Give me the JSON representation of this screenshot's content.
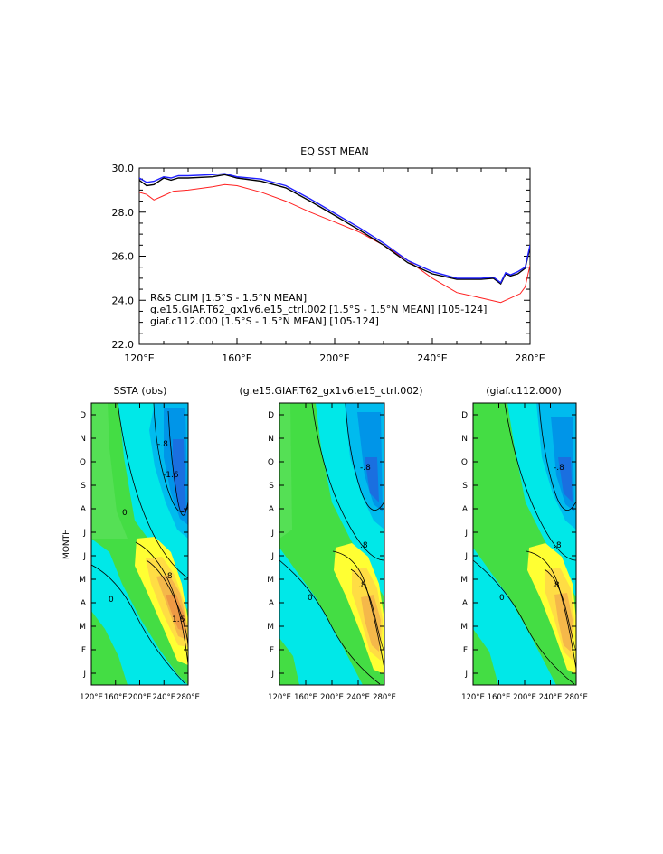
{
  "chart_data": [
    {
      "type": "line",
      "title": "EQ SST MEAN",
      "xlim": [
        120,
        280
      ],
      "ylim": [
        22,
        30
      ],
      "x_ticks": [
        120,
        160,
        200,
        240,
        280
      ],
      "x_tick_labels": [
        "120°E",
        "160°E",
        "200°E",
        "240°E",
        "280°E"
      ],
      "y_ticks": [
        22,
        24,
        26,
        28,
        30
      ],
      "y_tick_labels": [
        "22.0",
        "24.0",
        "26.0",
        "28.0",
        "30.0"
      ],
      "series": [
        {
          "name": "R&S CLIM [1.5°S - 1.5°N MEAN]",
          "color": "#ff2020",
          "x": [
            120,
            123,
            126,
            130,
            134,
            140,
            150,
            155,
            160,
            170,
            180,
            190,
            200,
            210,
            220,
            230,
            240,
            250,
            260,
            266,
            268,
            272,
            276,
            278,
            280
          ],
          "y": [
            28.9,
            28.8,
            28.55,
            28.75,
            28.95,
            29.0,
            29.15,
            29.25,
            29.2,
            28.9,
            28.5,
            28.0,
            27.55,
            27.1,
            26.5,
            25.8,
            25.0,
            24.35,
            24.1,
            23.95,
            23.9,
            24.1,
            24.3,
            24.6,
            25.6
          ]
        },
        {
          "name": "g.e15.GIAF.T62_gx1v6.e15_ctrl.002 [1.5°S - 1.5°N MEAN] [105-124]",
          "color": "#000000",
          "x": [
            120,
            123,
            126,
            130,
            133,
            136,
            140,
            150,
            155,
            160,
            170,
            180,
            190,
            200,
            210,
            220,
            230,
            240,
            250,
            260,
            265,
            268,
            270,
            272,
            275,
            278,
            280
          ],
          "y": [
            29.45,
            29.2,
            29.25,
            29.55,
            29.45,
            29.55,
            29.55,
            29.6,
            29.7,
            29.55,
            29.4,
            29.1,
            28.5,
            27.85,
            27.2,
            26.5,
            25.7,
            25.2,
            24.95,
            24.95,
            25.0,
            24.75,
            25.2,
            25.1,
            25.2,
            25.45,
            26.4
          ]
        },
        {
          "name": "giaf.c112.000 [1.5°S - 1.5°N MEAN] [105-124]",
          "color": "#2020ff",
          "x": [
            120,
            123,
            126,
            130,
            133,
            136,
            140,
            150,
            155,
            160,
            170,
            180,
            190,
            200,
            210,
            220,
            230,
            240,
            250,
            260,
            265,
            268,
            270,
            272,
            275,
            278,
            280
          ],
          "y": [
            29.55,
            29.35,
            29.4,
            29.6,
            29.55,
            29.65,
            29.65,
            29.7,
            29.75,
            29.6,
            29.5,
            29.2,
            28.6,
            27.95,
            27.3,
            26.6,
            25.8,
            25.3,
            25.0,
            25.0,
            25.05,
            24.8,
            25.25,
            25.15,
            25.3,
            25.5,
            26.5
          ]
        }
      ],
      "legend": [
        {
          "text": "R&S CLIM [1.5°S - 1.5°N MEAN]",
          "color": "#ff2020"
        },
        {
          "text": "g.e15.GIAF.T62_gx1v6.e15_ctrl.002 [1.5°S - 1.5°N MEAN] [105-124]",
          "color": "#000000"
        },
        {
          "text": "giaf.c112.000 [1.5°S - 1.5°N MEAN] [105-124]",
          "color": "#2020ff"
        }
      ]
    },
    {
      "type": "heatmap",
      "title": "SSTA (obs)",
      "ylabel": "MONTH",
      "months": [
        "J",
        "F",
        "M",
        "A",
        "M",
        "J",
        "J",
        "A",
        "S",
        "O",
        "N",
        "D"
      ],
      "x_tick_labels": [
        "120°E",
        "160°E",
        "200°E",
        "240°E",
        "280°E"
      ],
      "contour_labels": [
        "0",
        "-.8",
        "-1.6",
        ".8",
        "1.6"
      ]
    },
    {
      "type": "heatmap",
      "title": "(g.e15.GIAF.T62_gx1v6.e15_ctrl.002)",
      "months": [
        "J",
        "F",
        "M",
        "A",
        "M",
        "J",
        "J",
        "A",
        "S",
        "O",
        "N",
        "D"
      ],
      "x_tick_labels": [
        "120°E",
        "160°E",
        "200°E",
        "240°E",
        "280°E"
      ],
      "contour_labels": [
        "0",
        "-.8",
        ".8",
        "1.6"
      ]
    },
    {
      "type": "heatmap",
      "title": "(giaf.c112.000)",
      "months": [
        "J",
        "F",
        "M",
        "A",
        "M",
        "J",
        "J",
        "A",
        "S",
        "O",
        "N",
        "D"
      ],
      "x_tick_labels": [
        "120°E",
        "160°E",
        "200°E",
        "240°E",
        "280°E"
      ],
      "contour_labels": [
        "0",
        "-.8",
        ".8",
        "1.6"
      ]
    }
  ]
}
